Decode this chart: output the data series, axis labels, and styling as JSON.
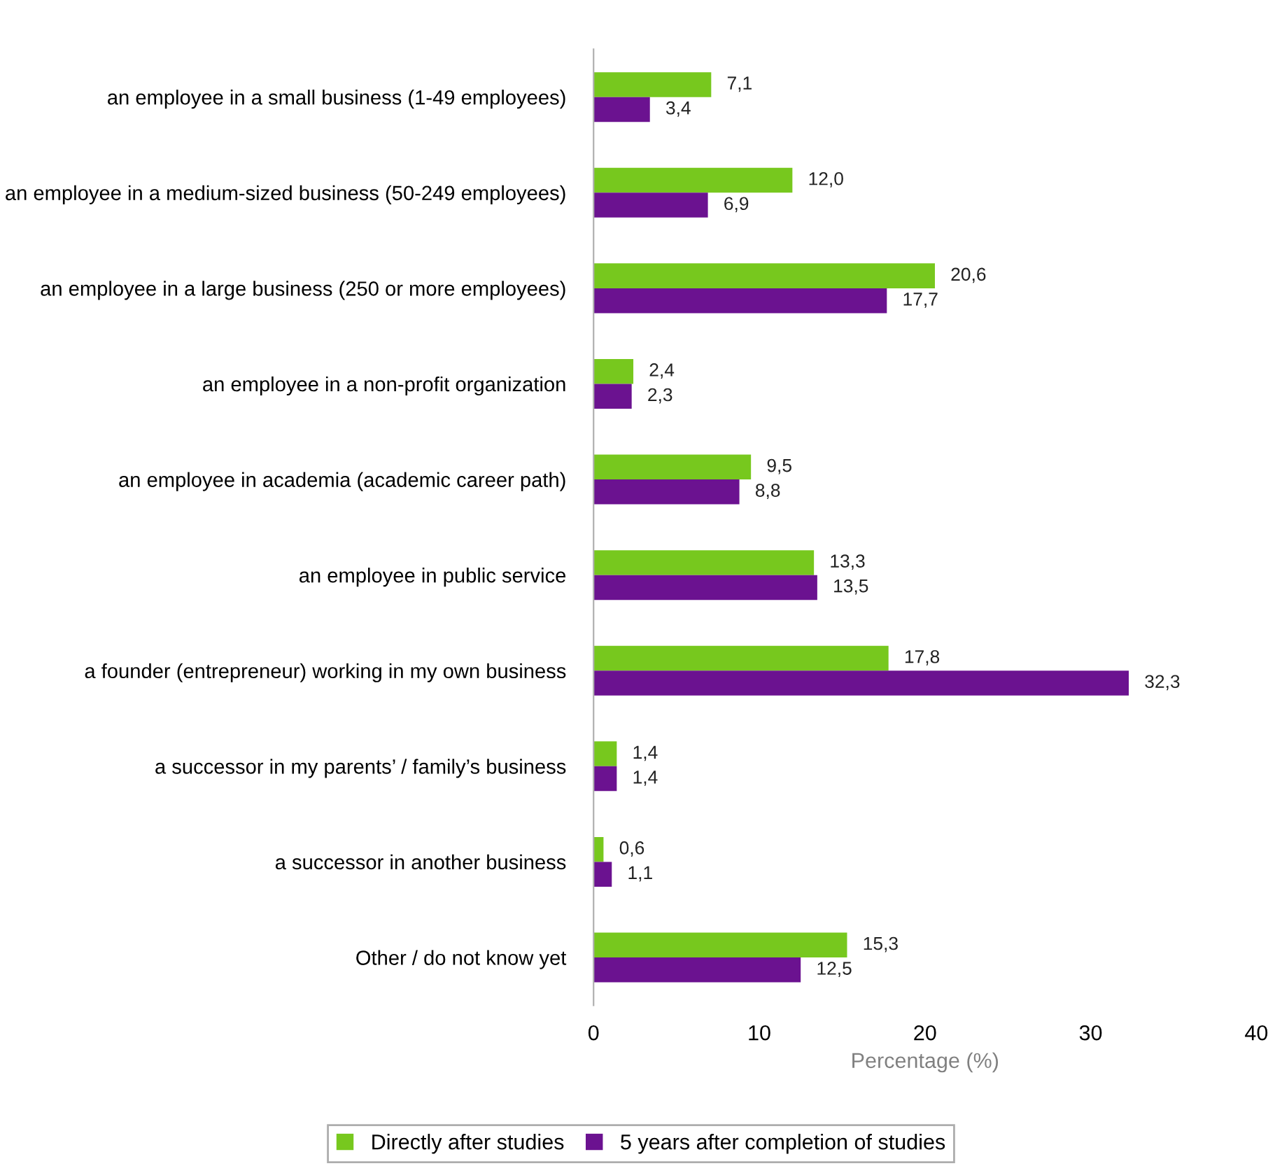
{
  "chart_data": {
    "type": "bar",
    "orientation": "horizontal",
    "xlabel": "Percentage (%)",
    "categories": [
      "an employee in a small business (1-49 employees)",
      "an employee in a medium-sized business (50-249 employees)",
      "an employee in a large business (250 or more employees)",
      "an employee in a non-profit organization",
      "an employee in academia (academic career path)",
      "an employee in public service",
      "a founder (entrepreneur) working in my own business",
      "a successor in my parents’ / family’s business",
      "a successor in another business",
      "Other / do not know yet"
    ],
    "series": [
      {
        "name": "Directly after studies",
        "color": "#77c81e",
        "values": [
          7.1,
          12.0,
          20.6,
          2.4,
          9.5,
          13.3,
          17.8,
          1.4,
          0.6,
          15.3
        ],
        "value_labels": [
          "7,1",
          "12,0",
          "20,6",
          "2,4",
          "9,5",
          "13,3",
          "17,8",
          "1,4",
          "0,6",
          "15,3"
        ]
      },
      {
        "name": "5 years after completion of studies",
        "color": "#6b1290",
        "values": [
          3.4,
          6.9,
          17.7,
          2.3,
          8.8,
          13.5,
          32.3,
          1.4,
          1.1,
          12.5
        ],
        "value_labels": [
          "3,4",
          "6,9",
          "17,7",
          "2,3",
          "8,8",
          "13,5",
          "32,3",
          "1,4",
          "1,1",
          "12,5"
        ]
      }
    ],
    "xlim": [
      0,
      40
    ],
    "xticks": [
      0,
      10,
      20,
      30,
      40
    ],
    "grid": false,
    "legend": "bottom"
  }
}
